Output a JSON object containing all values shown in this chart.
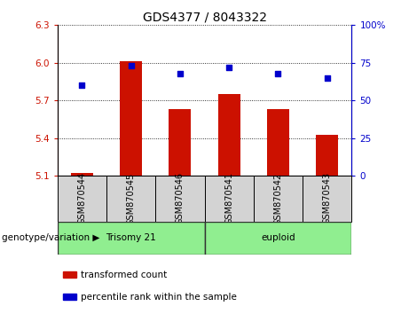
{
  "title": "GDS4377 / 8043322",
  "samples": [
    "GSM870544",
    "GSM870545",
    "GSM870546",
    "GSM870541",
    "GSM870542",
    "GSM870543"
  ],
  "bar_values": [
    5.12,
    6.01,
    5.63,
    5.75,
    5.63,
    5.43
  ],
  "percentile_values": [
    60,
    73,
    68,
    72,
    68,
    65
  ],
  "ylim_left": [
    5.1,
    6.3
  ],
  "ylim_right": [
    0,
    100
  ],
  "yticks_left": [
    5.1,
    5.4,
    5.7,
    6.0,
    6.3
  ],
  "yticks_right": [
    0,
    25,
    50,
    75,
    100
  ],
  "ytick_labels_right": [
    "0",
    "25",
    "50",
    "75",
    "100%"
  ],
  "bar_color": "#cc1100",
  "dot_color": "#0000cc",
  "bar_base": 5.1,
  "groups": [
    {
      "label": "Trisomy 21",
      "span": [
        0,
        3
      ],
      "color": "#90ee90"
    },
    {
      "label": "euploid",
      "span": [
        3,
        6
      ],
      "color": "#90ee90"
    }
  ],
  "group_label": "genotype/variation",
  "legend_items": [
    {
      "label": "transformed count",
      "color": "#cc1100"
    },
    {
      "label": "percentile rank within the sample",
      "color": "#0000cc"
    }
  ],
  "title_fontsize": 10,
  "tick_fontsize": 7.5,
  "label_fontsize": 7.5,
  "bar_width": 0.45,
  "sample_bg": "#d3d3d3",
  "group_border_color": "#333333"
}
